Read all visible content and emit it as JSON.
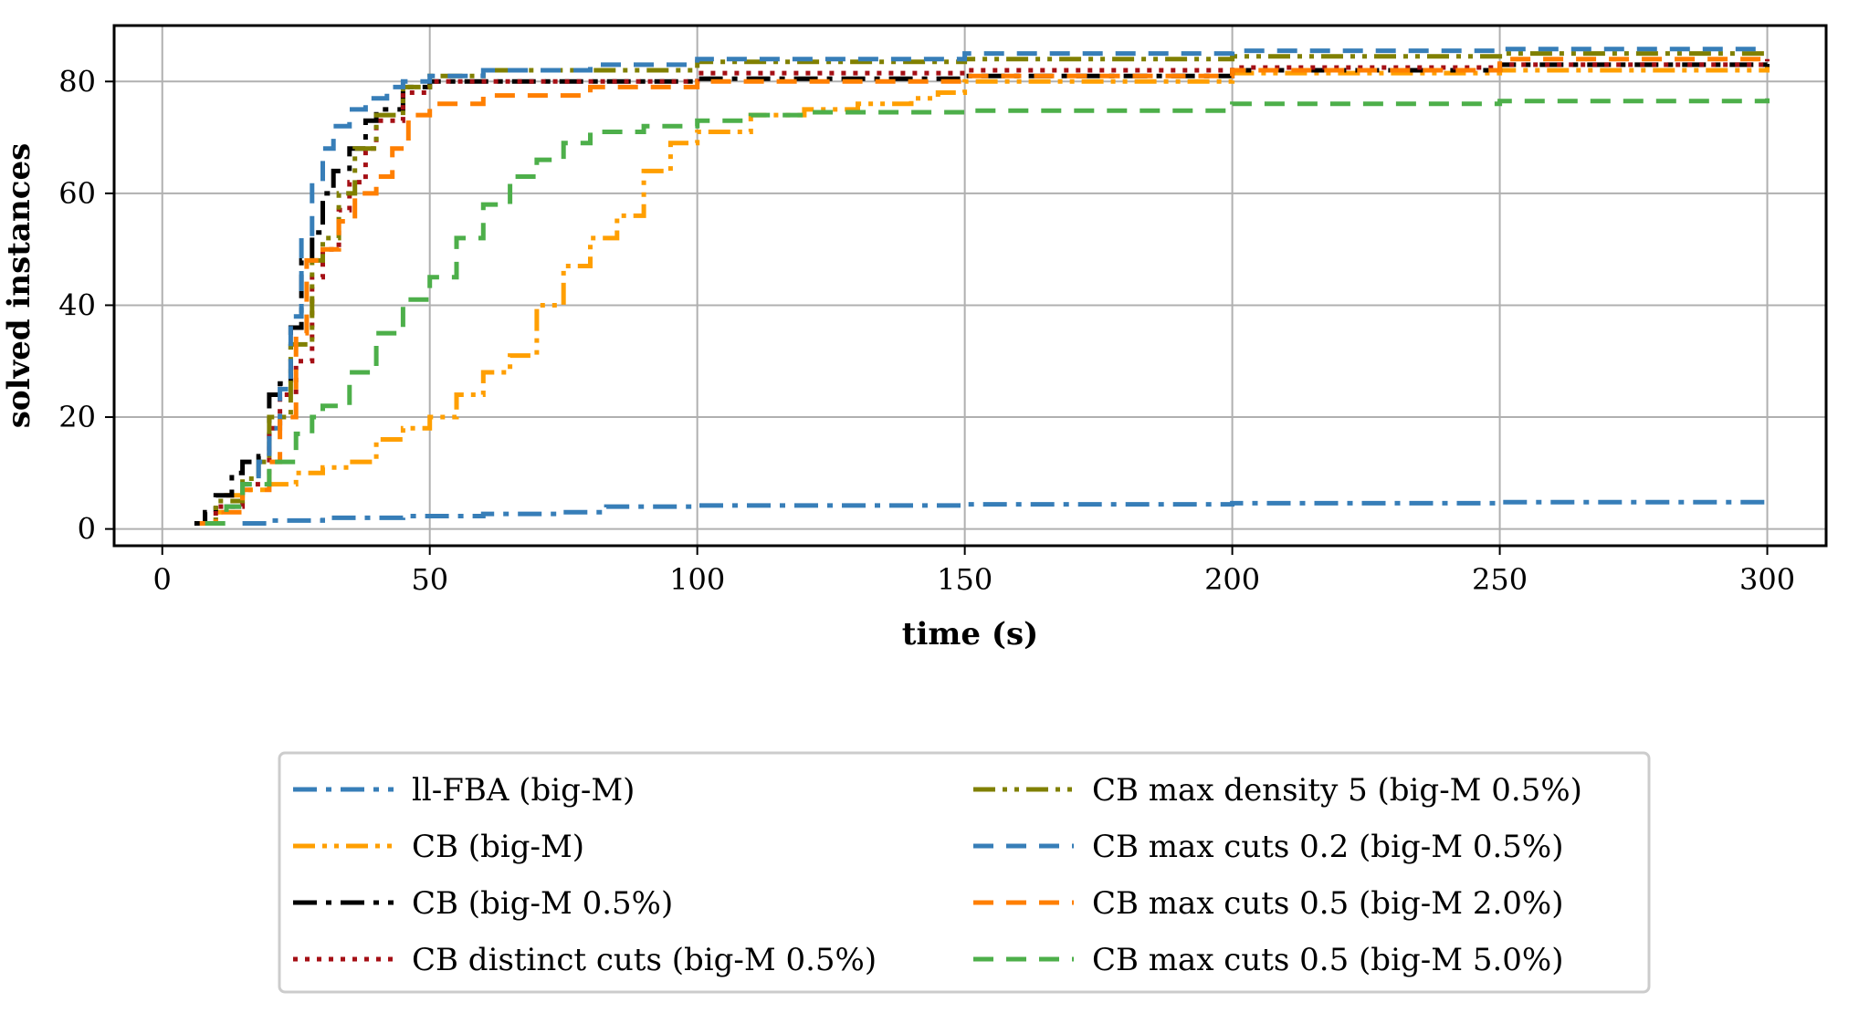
{
  "chart_data": {
    "type": "line",
    "title": "",
    "xlabel": "time (s)",
    "ylabel": "solved instances",
    "xlim": [
      -9,
      311
    ],
    "ylim": [
      -3,
      90
    ],
    "xticks": [
      0,
      50,
      100,
      150,
      200,
      250,
      300
    ],
    "yticks": [
      0,
      20,
      40,
      60,
      80
    ],
    "grid": true,
    "legend_position": "bottom-center, two columns",
    "series": [
      {
        "name": "ll-FBA (big-M)",
        "color": "#377eb8",
        "dash": "dashdot",
        "x": [
          15,
          20,
          30,
          45,
          60,
          75,
          83,
          100,
          150,
          200,
          250,
          300
        ],
        "y": [
          1,
          1.5,
          2,
          2.3,
          2.7,
          3,
          4,
          4.2,
          4.4,
          4.6,
          4.8,
          5
        ]
      },
      {
        "name": "CB (big-M)",
        "color": "#ff9f00",
        "dash": "dashdotdot",
        "x": [
          7,
          10,
          12,
          15,
          20,
          25,
          30,
          35,
          40,
          45,
          50,
          55,
          60,
          65,
          70,
          75,
          80,
          85,
          90,
          95,
          100,
          110,
          120,
          130,
          140,
          145,
          150,
          200,
          250,
          300
        ],
        "y": [
          1,
          3,
          6,
          7,
          8,
          10,
          11,
          12,
          16,
          18,
          20,
          24,
          28,
          31,
          40,
          47,
          52,
          56,
          64,
          69,
          71,
          74,
          75,
          76,
          77,
          78,
          80,
          81.5,
          82,
          83
        ]
      },
      {
        "name": "CB (big-M 0.5%)",
        "color": "#000000",
        "dash": "dashdot",
        "x": [
          6,
          8,
          10,
          13,
          15,
          18,
          20,
          22,
          24,
          26,
          28,
          30,
          32,
          35,
          38,
          40,
          45,
          50,
          100,
          150,
          200,
          250,
          300
        ],
        "y": [
          1,
          3,
          6,
          10,
          12,
          13,
          24,
          26,
          36,
          48,
          53,
          60,
          64,
          68,
          73,
          75,
          79,
          80,
          80.5,
          81,
          82,
          83,
          84
        ]
      },
      {
        "name": "CB distinct cuts (big-M 0.5%)",
        "color": "#a50f15",
        "dash": "dotted",
        "x": [
          7,
          10,
          15,
          20,
          22,
          25,
          28,
          30,
          33,
          35,
          38,
          40,
          45,
          50,
          100,
          150,
          200,
          250,
          300
        ],
        "y": [
          1,
          4,
          8,
          18,
          24,
          30,
          45,
          50,
          57,
          62,
          68,
          73,
          78,
          80,
          81.5,
          82,
          82.5,
          83,
          84
        ]
      },
      {
        "name": "CB max density 5 (big-M 0.5%)",
        "color": "#808000",
        "dash": "dashdotdot",
        "x": [
          7,
          10,
          15,
          18,
          20,
          24,
          28,
          30,
          33,
          36,
          40,
          45,
          50,
          60,
          100,
          150,
          200,
          250,
          300
        ],
        "y": [
          1,
          5,
          9,
          12,
          20,
          33,
          48,
          52,
          60,
          68,
          74,
          79,
          81,
          82,
          83.5,
          84,
          84.5,
          85,
          85
        ]
      },
      {
        "name": "CB max cuts 0.2 (big-M 0.5%)",
        "color": "#377eb8",
        "dash": "dashed",
        "x": [
          8,
          12,
          15,
          18,
          20,
          22,
          24,
          26,
          28,
          30,
          32,
          35,
          38,
          42,
          45,
          50,
          60,
          80,
          100,
          150,
          200,
          250,
          300
        ],
        "y": [
          1,
          4,
          8,
          12,
          18,
          25,
          38,
          52,
          62,
          68,
          72,
          75,
          77,
          79,
          80,
          81,
          82,
          83,
          84,
          85,
          85.5,
          85.8,
          86
        ]
      },
      {
        "name": "CB max cuts 0.5 (big-M 2.0%)",
        "color": "#ff7f00",
        "dash": "dashed",
        "x": [
          7,
          10,
          15,
          20,
          22,
          25,
          27,
          30,
          33,
          36,
          40,
          43,
          46,
          50,
          60,
          80,
          100,
          150,
          200,
          250,
          300
        ],
        "y": [
          1,
          3,
          7,
          12,
          20,
          35,
          48,
          50,
          55,
          60,
          63,
          68,
          74,
          76,
          77.5,
          79,
          80,
          81,
          82,
          84,
          85
        ]
      },
      {
        "name": "CB max cuts 0.5 (big-M 5.0%)",
        "color": "#4daf4a",
        "dash": "dashed",
        "x": [
          8,
          12,
          15,
          20,
          25,
          28,
          30,
          35,
          40,
          45,
          50,
          55,
          60,
          65,
          70,
          75,
          80,
          90,
          100,
          110,
          120,
          150,
          200,
          250,
          300
        ],
        "y": [
          1,
          4,
          8,
          12,
          17,
          20,
          22,
          28,
          35,
          41,
          45,
          52,
          58,
          63,
          66,
          69,
          71,
          72,
          73,
          74,
          74.5,
          74.8,
          76,
          76.5,
          77
        ]
      }
    ]
  }
}
